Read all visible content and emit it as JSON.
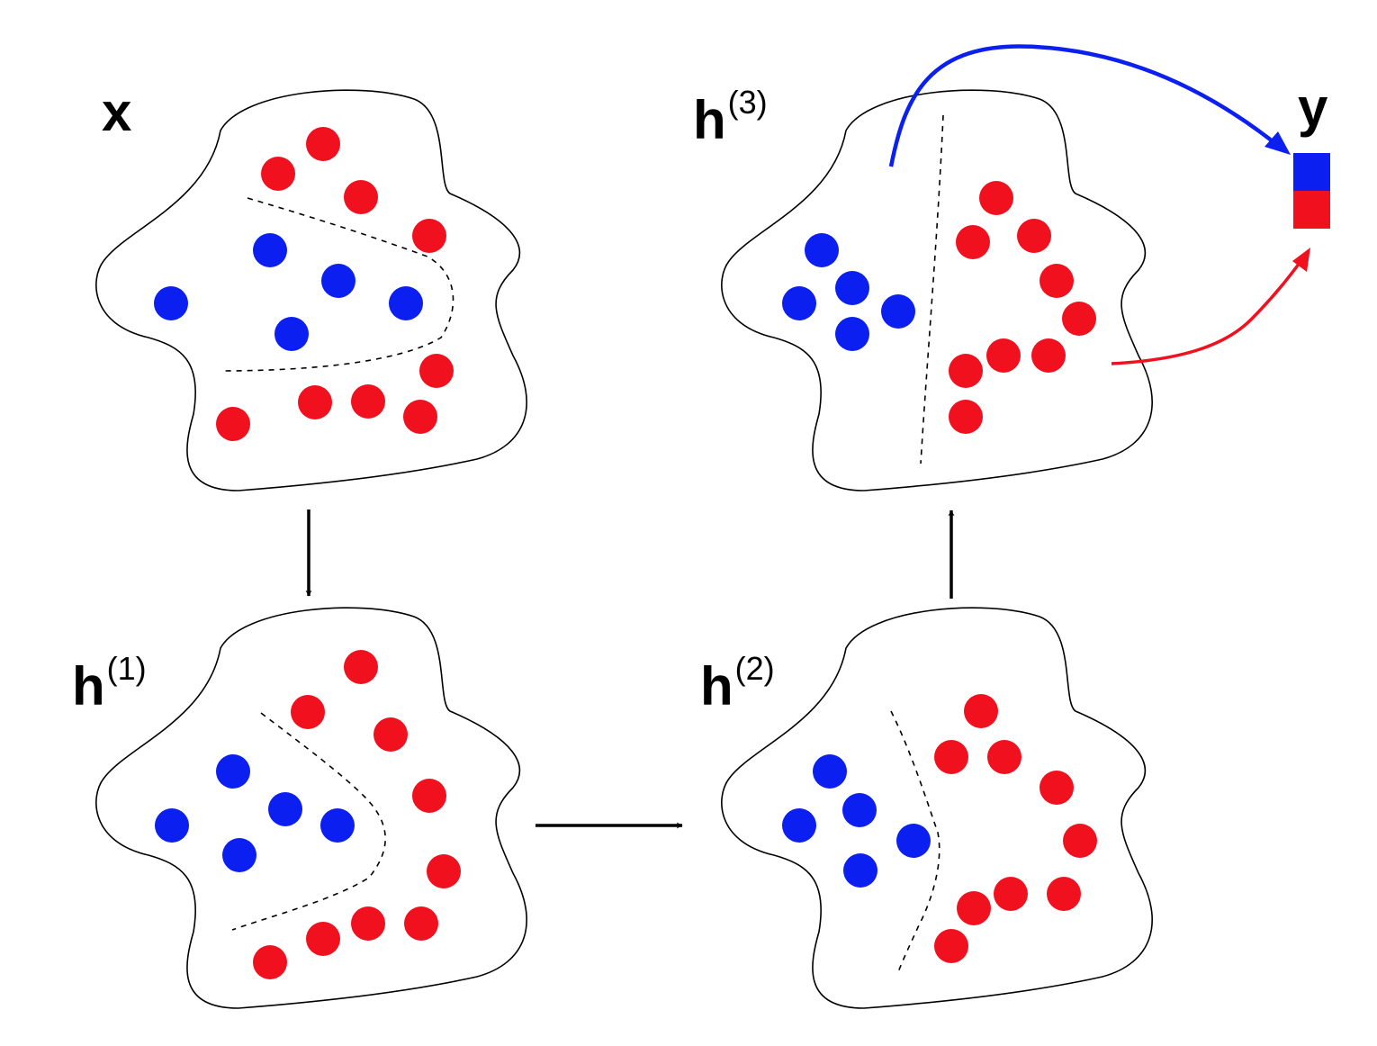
{
  "labels": {
    "x": {
      "main": "x",
      "sup": ""
    },
    "h1": {
      "main": "h",
      "sup": "(1)"
    },
    "h2": {
      "main": "h",
      "sup": "(2)"
    },
    "h3": {
      "main": "h",
      "sup": "(3)"
    },
    "y": {
      "main": "y",
      "sup": ""
    }
  },
  "colors": {
    "class_a": "#0a1ff0",
    "class_b": "#f0101e",
    "outline": "#000000"
  },
  "output_vector": {
    "cells": [
      "class_a",
      "class_b"
    ]
  }
}
